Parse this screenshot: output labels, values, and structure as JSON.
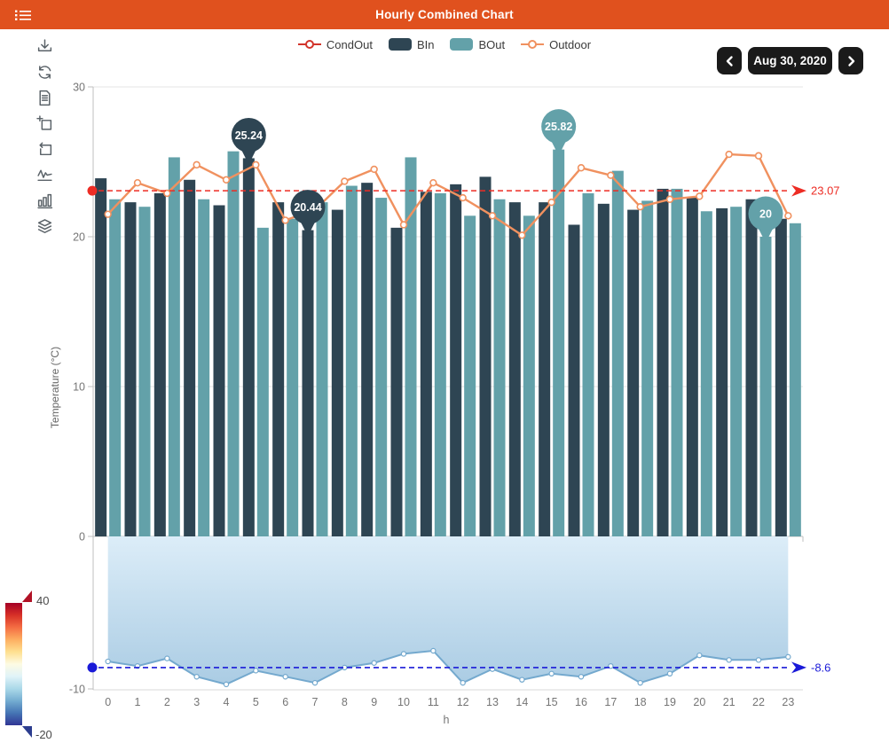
{
  "header": {
    "title": "Hourly Combined Chart"
  },
  "toolbar": {
    "icons": [
      "save-image-icon",
      "restore-icon",
      "data-view-icon",
      "zoom-select-icon",
      "zoom-reset-icon",
      "line-chart-icon",
      "bar-chart-icon",
      "stack-icon"
    ]
  },
  "legend": [
    {
      "label": "CondOut",
      "type": "line",
      "color": "#D2342B"
    },
    {
      "label": "BIn",
      "type": "swatch",
      "color": "#2E4553"
    },
    {
      "label": "BOut",
      "type": "swatch",
      "color": "#63A1A9"
    },
    {
      "label": "Outdoor",
      "type": "line",
      "color": "#F0915F"
    }
  ],
  "date_nav": {
    "date": "Aug 30, 2020",
    "prev_icon": "chevron-left-icon",
    "next_icon": "chevron-right-icon"
  },
  "chart_data": {
    "type": "bar",
    "title": "Hourly Combined Chart",
    "xlabel": "h",
    "ylabel": "Temperature (°C)",
    "x": [
      0,
      1,
      2,
      3,
      4,
      5,
      6,
      7,
      8,
      9,
      10,
      11,
      12,
      13,
      14,
      15,
      16,
      17,
      18,
      19,
      20,
      21,
      22,
      23
    ],
    "yticks_main": [
      30,
      20,
      10,
      0
    ],
    "yticks_bottom": [
      -10
    ],
    "ylim_main": [
      0,
      30
    ],
    "ylim_bottom": [
      -10,
      0
    ],
    "grid": true,
    "legend_position": "top-center",
    "series": [
      {
        "name": "BIn",
        "type": "bar",
        "color": "#2E4553",
        "values": [
          23.9,
          22.3,
          22.9,
          23.8,
          22.1,
          25.24,
          22.3,
          20.44,
          21.8,
          23.6,
          20.6,
          23.0,
          23.5,
          24.0,
          22.3,
          22.3,
          20.8,
          22.2,
          21.8,
          23.2,
          22.6,
          21.9,
          22.5,
          21.2
        ]
      },
      {
        "name": "BOut",
        "type": "bar",
        "color": "#63A1A9",
        "values": [
          22.5,
          22.0,
          25.3,
          22.5,
          25.7,
          20.6,
          21.2,
          22.3,
          23.4,
          22.6,
          25.3,
          22.9,
          21.4,
          22.5,
          21.4,
          25.82,
          22.9,
          24.4,
          22.4,
          23.2,
          21.7,
          22.0,
          20.0,
          20.9
        ]
      },
      {
        "name": "Outdoor",
        "type": "line",
        "color": "#F0915F",
        "values": [
          21.5,
          23.6,
          22.9,
          24.8,
          23.8,
          24.8,
          21.1,
          21.8,
          23.7,
          24.5,
          20.8,
          23.6,
          22.6,
          21.4,
          20.1,
          22.3,
          24.6,
          24.1,
          22.0,
          22.5,
          22.7,
          25.5,
          25.4,
          21.4
        ]
      },
      {
        "name": "CondOut",
        "type": "area",
        "color": "#74A9CE",
        "values": [
          -8.2,
          -8.5,
          -8.0,
          -9.2,
          -9.7,
          -8.8,
          -9.2,
          -9.6,
          -8.6,
          -8.3,
          -7.7,
          -7.5,
          -9.6,
          -8.7,
          -9.4,
          -9.0,
          -9.2,
          -8.5,
          -9.6,
          -9.0,
          -7.8,
          -8.1,
          -8.1,
          -7.9
        ]
      }
    ],
    "avg_lines": [
      {
        "value": 23.07,
        "label": "23.07",
        "color": "#ED2C24"
      },
      {
        "value": -8.6,
        "label": "-8.6",
        "color": "#1A1AD8"
      }
    ],
    "annotations": [
      {
        "series": "BIn",
        "hour": 5,
        "label": "25.24"
      },
      {
        "series": "BIn",
        "hour": 7,
        "label": "20.44"
      },
      {
        "series": "BOut",
        "hour": 15,
        "label": "25.82"
      },
      {
        "series": "BOut",
        "hour": 22,
        "label": "20"
      }
    ],
    "colorbar": {
      "max_label": "40",
      "min_label": "-20"
    }
  }
}
